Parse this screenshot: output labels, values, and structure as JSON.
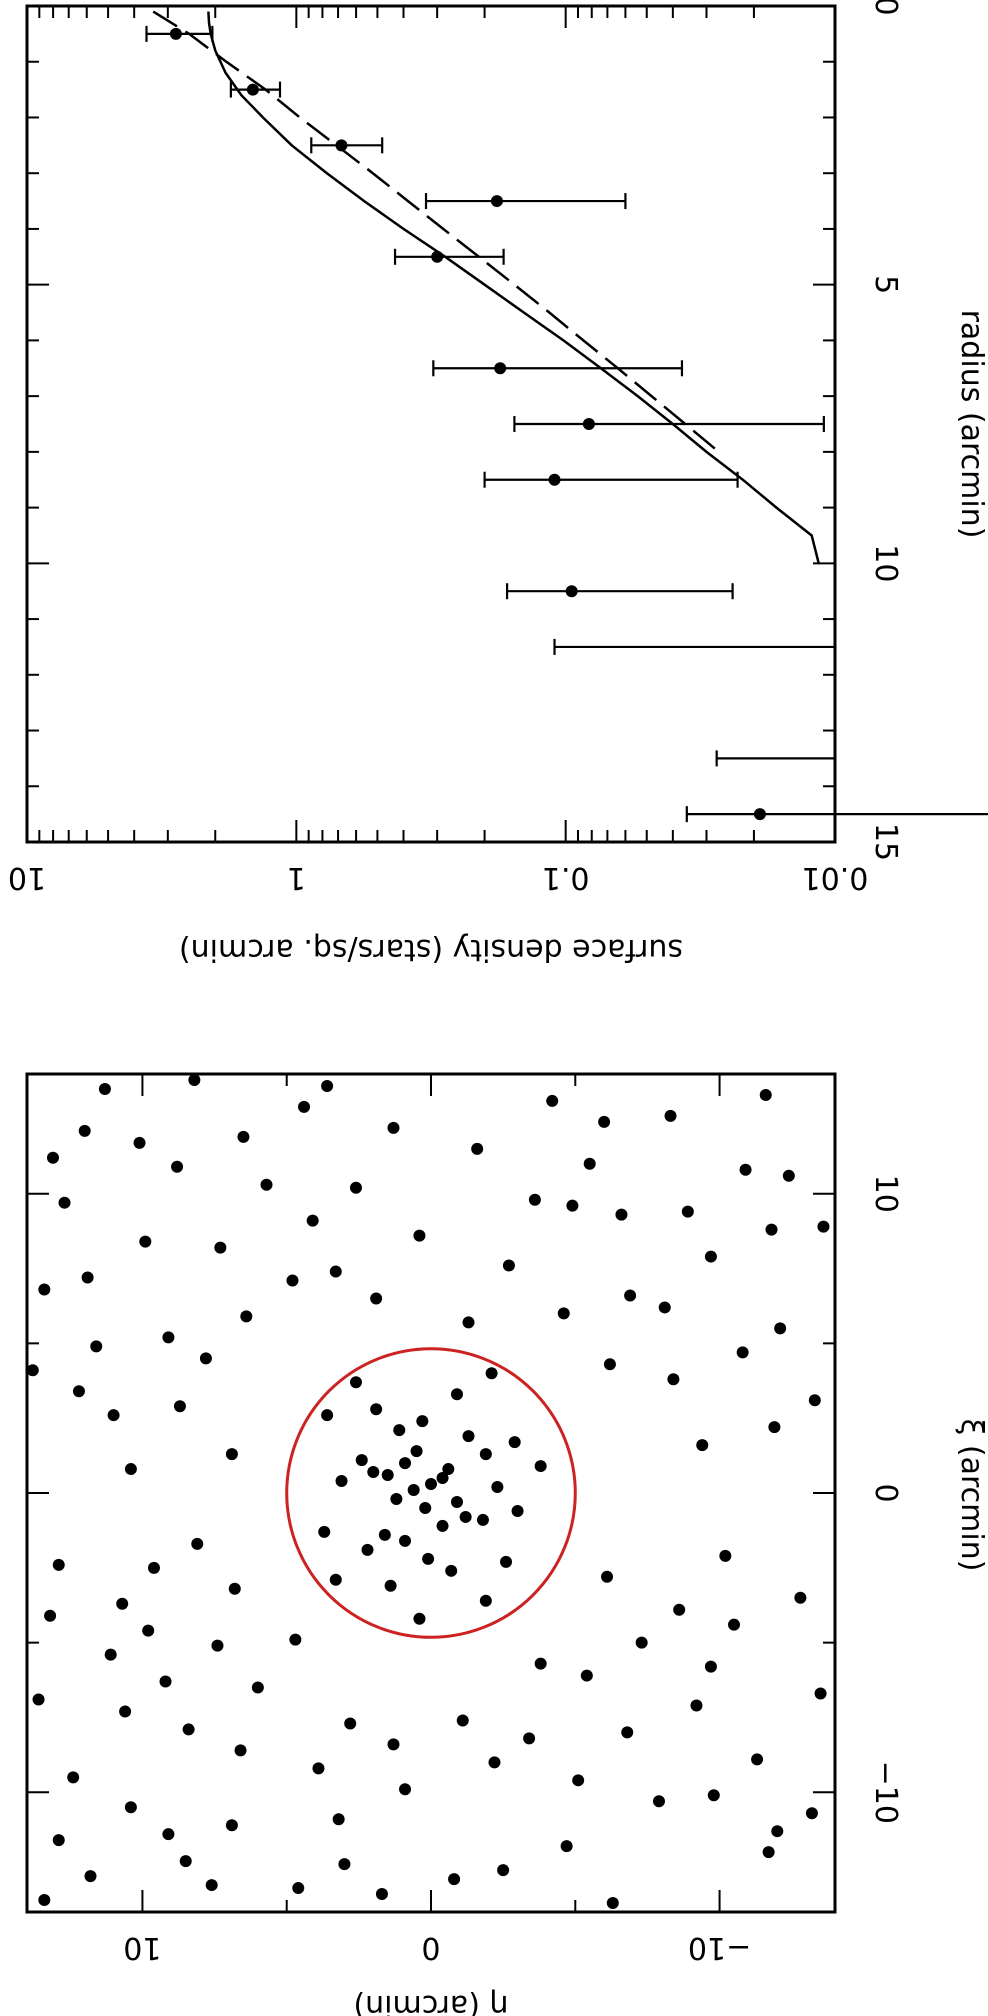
{
  "chart_data": [
    {
      "type": "line",
      "panel": "surface density profile",
      "orientation": "rotated 90 degrees clockwise",
      "xlabel": "radius (arcmin)",
      "ylabel": "surface density (stars/sq. arcmin)",
      "xlim": [
        0,
        15
      ],
      "ylim": [
        0.01,
        10
      ],
      "yscale": "log",
      "x_ticks": [
        "0",
        "5",
        "10",
        "15"
      ],
      "y_ticks": [
        "0.01",
        "0.1",
        "1",
        "10"
      ],
      "series": [
        {
          "style": "points-with-errorbars",
          "x": [
            0.5,
            1.5,
            2.5,
            3.5,
            4.5,
            6.5,
            7.5,
            8.5,
            10.5,
            14.5
          ],
          "y": [
            2.8,
            1.45,
            0.68,
            0.18,
            0.3,
            0.175,
            0.082,
            0.11,
            0.095,
            0.019
          ],
          "yerr_low": [
            2.05,
            1.15,
            0.48,
            0.06,
            0.17,
            0.037,
            0.011,
            0.023,
            0.024,
            0.00235
          ],
          "yerr_high": [
            3.6,
            1.75,
            0.88,
            0.33,
            0.43,
            0.31,
            0.155,
            0.2,
            0.165,
            0.0355
          ]
        },
        {
          "style": "upper-limit-bars",
          "x": [
            11.5,
            13.5
          ],
          "y_low": [
            0.01,
            0.01
          ],
          "y_high": [
            0.11,
            0.0275
          ]
        },
        {
          "style": "solid",
          "x": [
            0.1,
            0.3,
            0.5,
            0.8,
            1.2,
            1.6,
            2.0,
            2.5,
            3.0,
            3.5,
            4.0,
            4.5,
            5.0,
            5.5,
            6.0,
            6.5,
            7.0,
            7.5,
            8.0,
            8.5,
            9.0,
            9.5,
            10.0
          ],
          "y": [
            2.12,
            2.11,
            2.08,
            2.0,
            1.83,
            1.6,
            1.33,
            1.04,
            0.77,
            0.56,
            0.4,
            0.28,
            0.2,
            0.143,
            0.102,
            0.074,
            0.054,
            0.04,
            0.03,
            0.022,
            0.0165,
            0.0122,
            0.0115
          ]
        },
        {
          "style": "dashed",
          "x": [
            0.1,
            0.5,
            1.0,
            1.5,
            2.0,
            2.5,
            3.0,
            3.5,
            4.0,
            4.5,
            5.0,
            5.5,
            6.0,
            6.5,
            7.0,
            7.5,
            8.0
          ],
          "y": [
            3.4,
            2.5,
            1.82,
            1.3,
            0.97,
            0.71,
            0.52,
            0.385,
            0.285,
            0.21,
            0.155,
            0.115,
            0.086,
            0.064,
            0.048,
            0.036,
            0.027
          ]
        }
      ]
    },
    {
      "type": "scatter",
      "panel": "spatial distribution",
      "orientation": "rotated 90 degrees clockwise",
      "xlabel": "ξ (arcmin)",
      "ylabel": "η (arcmin)",
      "xlim": [
        -14,
        14
      ],
      "ylim": [
        -14,
        14
      ],
      "x_ticks": [
        "10",
        "0",
        "−10"
      ],
      "y_ticks": [
        "10",
        "0",
        "−10"
      ],
      "circle": {
        "center": [
          0,
          0
        ],
        "radius": 5,
        "color": "#cc2222"
      },
      "points": [
        [
          0.3,
          0.0
        ],
        [
          -0.5,
          0.2
        ],
        [
          0.8,
          -0.6
        ],
        [
          -1.1,
          -0.4
        ],
        [
          1.4,
          0.5
        ],
        [
          -0.2,
          1.2
        ],
        [
          0.6,
          1.5
        ],
        [
          -1.6,
          0.9
        ],
        [
          1.9,
          -1.3
        ],
        [
          -0.9,
          -1.8
        ],
        [
          0.2,
          -2.3
        ],
        [
          2.4,
          0.3
        ],
        [
          -2.6,
          -0.7
        ],
        [
          1.1,
          2.4
        ],
        [
          -1.9,
          2.2
        ],
        [
          2.8,
          1.9
        ],
        [
          -3.1,
          1.4
        ],
        [
          0.4,
          3.1
        ],
        [
          -0.6,
          -3.0
        ],
        [
          3.3,
          -0.9
        ],
        [
          -2.3,
          -2.6
        ],
        [
          1.7,
          -2.9
        ],
        [
          -3.6,
          -1.9
        ],
        [
          3.7,
          2.6
        ],
        [
          0.9,
          -3.8
        ],
        [
          -1.3,
          3.7
        ],
        [
          4.0,
          -2.1
        ],
        [
          -4.2,
          0.4
        ],
        [
          2.6,
          3.6
        ],
        [
          -2.9,
          3.3
        ],
        [
          0.5,
          -0.4
        ],
        [
          -0.3,
          -0.9
        ],
        [
          1.0,
          0.9
        ],
        [
          -1.4,
          1.6
        ],
        [
          0.1,
          0.6
        ],
        [
          -0.8,
          -1.2
        ],
        [
          1.3,
          -1.9
        ],
        [
          2.1,
          1.1
        ],
        [
          -2.2,
          0.1
        ],
        [
          0.7,
          2.0
        ],
        [
          -6.5,
          6.0
        ],
        [
          -8.2,
          -3.4
        ],
        [
          7.1,
          4.8
        ],
        [
          9.3,
          -6.6
        ],
        [
          -11.4,
          9.1
        ],
        [
          12.2,
          1.3
        ],
        [
          -5.8,
          -9.7
        ],
        [
          4.9,
          11.6
        ],
        [
          -12.6,
          -2.5
        ],
        [
          10.8,
          -10.9
        ],
        [
          -9.5,
          12.4
        ],
        [
          6.2,
          -8.1
        ],
        [
          -7.7,
          2.8
        ],
        [
          8.4,
          9.9
        ],
        [
          -3.5,
          -12.8
        ],
        [
          13.1,
          -4.2
        ],
        [
          -10.3,
          -7.9
        ],
        [
          2.9,
          8.7
        ],
        [
          -4.6,
          9.8
        ],
        [
          11.9,
          6.5
        ],
        [
          -13.2,
          4.6
        ],
        [
          5.5,
          -12.1
        ],
        [
          -8.9,
          -11.3
        ],
        [
          9.7,
          12.7
        ],
        [
          -6.1,
          -5.4
        ],
        [
          7.6,
          -2.7
        ],
        [
          -12.0,
          -11.7
        ],
        [
          1.6,
          -9.4
        ],
        [
          -2.4,
          12.9
        ],
        [
          13.5,
          11.3
        ],
        [
          -9.9,
          0.9
        ],
        [
          4.3,
          -6.2
        ],
        [
          -5.1,
          7.4
        ],
        [
          10.2,
          2.6
        ],
        [
          -13.7,
          -6.3
        ],
        [
          6.8,
          13.4
        ],
        [
          -7.3,
          10.6
        ],
        [
          12.6,
          -8.3
        ],
        [
          -3.9,
          -8.6
        ],
        [
          8.9,
          -13.6
        ],
        [
          -11.1,
          6.9
        ],
        [
          3.4,
          12.2
        ],
        [
          -1.7,
          8.1
        ],
        [
          11.5,
          -1.6
        ],
        [
          -8.0,
          -6.8
        ],
        [
          5.9,
          6.4
        ],
        [
          -12.8,
          11.8
        ],
        [
          9.1,
          4.1
        ],
        [
          -4.4,
          -10.5
        ],
        [
          7.9,
          -9.7
        ],
        [
          -10.7,
          -13.2
        ],
        [
          0.8,
          10.4
        ],
        [
          -6.9,
          13.6
        ],
        [
          13.8,
          8.2
        ],
        [
          -9.2,
          3.9
        ],
        [
          4.7,
          -10.8
        ],
        [
          -13.4,
          1.7
        ],
        [
          10.6,
          -12.4
        ],
        [
          -2.8,
          -6.1
        ],
        [
          6.5,
          1.9
        ],
        [
          -7.6,
          -1.1
        ],
        [
          12.9,
          4.4
        ],
        [
          -11.8,
          -4.7
        ],
        [
          2.2,
          -11.9
        ],
        [
          -5.4,
          11.1
        ],
        [
          8.2,
          7.3
        ],
        [
          -12.3,
          8.5
        ],
        [
          11.2,
          13.1
        ],
        [
          -8.6,
          6.6
        ],
        [
          5.2,
          9.1
        ],
        [
          -3.2,
          6.8
        ],
        [
          9.6,
          -4.9
        ],
        [
          -10.1,
          -9.8
        ],
        [
          3.8,
          -8.4
        ],
        [
          -6.7,
          -13.5
        ],
        [
          13.3,
          -11.6
        ],
        [
          -13.9,
          -9.4
        ],
        [
          7.2,
          11.9
        ],
        [
          -4.9,
          4.7
        ],
        [
          10.9,
          8.8
        ],
        [
          -11.6,
          12.9
        ],
        [
          1.3,
          6.9
        ],
        [
          -7.9,
          8.4
        ],
        [
          12.4,
          -6.0
        ],
        [
          -9.6,
          -5.1
        ],
        [
          6.0,
          -4.6
        ],
        [
          -2.1,
          -10.2
        ],
        [
          8.6,
          0.4
        ],
        [
          -12.9,
          -0.8
        ],
        [
          4.1,
          13.8
        ],
        [
          -5.7,
          -3.8
        ],
        [
          11.7,
          10.1
        ],
        [
          -13.6,
          13.4
        ],
        [
          9.4,
          -8.9
        ],
        [
          -8.4,
          1.3
        ],
        [
          3.1,
          -13.3
        ],
        [
          -10.9,
          3.2
        ],
        [
          7.4,
          3.3
        ],
        [
          -4.1,
          13.2
        ],
        [
          13.9,
          -2.9
        ],
        [
          -6.3,
          9.2
        ],
        [
          5.7,
          -1.3
        ],
        [
          -11.3,
          -12.0
        ],
        [
          10.3,
          5.7
        ],
        [
          -7.1,
          -9.2
        ],
        [
          2.6,
          11.0
        ],
        [
          -13.1,
          7.6
        ],
        [
          8.8,
          -11.8
        ],
        [
          -3.7,
          10.7
        ],
        [
          12.1,
          12.0
        ],
        [
          -9.0,
          -2.2
        ],
        [
          6.6,
          -6.9
        ],
        [
          -12.4,
          3.0
        ],
        [
          4.5,
          7.8
        ],
        [
          -5.0,
          -7.3
        ],
        [
          11.0,
          -5.5
        ],
        [
          -10.5,
          10.4
        ],
        [
          9.8,
          -3.6
        ],
        [
          -2.5,
          9.6
        ],
        [
          13.6,
          3.6
        ]
      ]
    }
  ]
}
